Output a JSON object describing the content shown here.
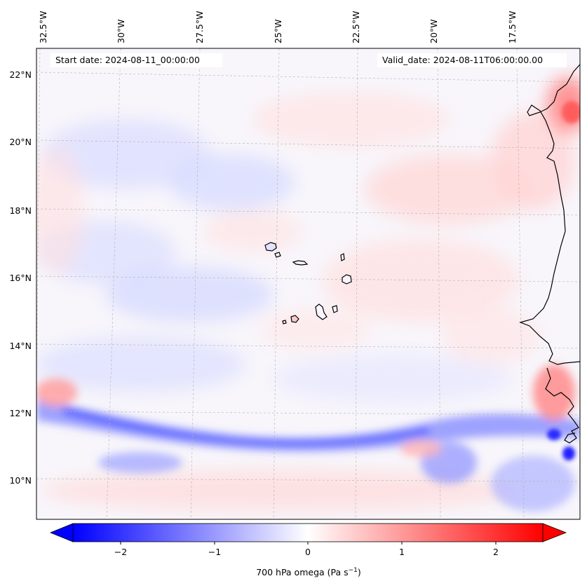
{
  "map": {
    "start_label": "Start date: 2024-08-11_00:00:00",
    "valid_label": "Valid_date: 2024-08-11T06:00:00.00",
    "lon_ticks": [
      "32.5°W",
      "30°W",
      "27.5°W",
      "25°W",
      "22.5°W",
      "20°W",
      "17.5°W"
    ],
    "lat_ticks": [
      "22°N",
      "20°N",
      "18°N",
      "16°N",
      "14°N",
      "12°N",
      "10°N"
    ],
    "colorbar": {
      "ticks": [
        "−2",
        "−1",
        "0",
        "1",
        "2"
      ],
      "label": "700 hPa omega (Pa s",
      "label_sup": "−1",
      "label_end": ")",
      "range": [
        -2.6,
        2.6
      ]
    },
    "colors": {
      "neg": "#0000ff",
      "zero": "#ffffff",
      "pos": "#ff0000",
      "coast": "#000000",
      "grid": "#b0b0b0"
    }
  }
}
